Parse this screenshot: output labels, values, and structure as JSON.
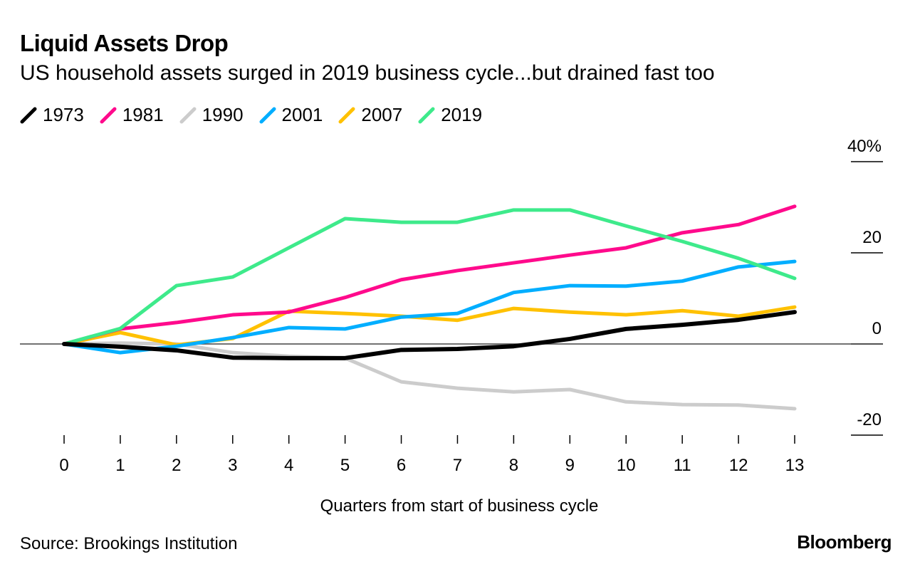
{
  "chart_data": {
    "type": "line",
    "title": "Liquid Assets Drop",
    "subtitle": "US household assets surged in 2019 business cycle...but drained fast too",
    "xlabel": "Quarters from start of business cycle",
    "ylabel": "",
    "x": [
      0,
      1,
      2,
      3,
      4,
      5,
      6,
      7,
      8,
      9,
      10,
      11,
      12,
      13
    ],
    "xlim": [
      0,
      13
    ],
    "ylim": [
      -20,
      40
    ],
    "yticks": [
      -20,
      0,
      20,
      40
    ],
    "ytick_labels": [
      "-20",
      "0",
      "20",
      "40%"
    ],
    "xtick_labels": [
      "0",
      "1",
      "2",
      "3",
      "4",
      "5",
      "6",
      "7",
      "8",
      "9",
      "10",
      "11",
      "12",
      "13"
    ],
    "grid": false,
    "legend_placement": "top-left",
    "series": [
      {
        "name": "1973",
        "color": "#000000",
        "values": [
          0,
          -0.6,
          -1.4,
          -3.0,
          -3.1,
          -3.1,
          -1.3,
          -1.1,
          -0.5,
          1.1,
          3.3,
          4.2,
          5.3,
          7.0
        ]
      },
      {
        "name": "1981",
        "color": "#ff0a8c",
        "values": [
          0,
          3.3,
          4.7,
          6.4,
          7.0,
          10.2,
          14.1,
          16.1,
          17.8,
          19.5,
          21.1,
          24.4,
          26.2,
          30.2
        ]
      },
      {
        "name": "1990",
        "color": "#cccccc",
        "values": [
          0,
          0.2,
          0,
          -1.9,
          -2.7,
          -3.1,
          -8.3,
          -9.7,
          -10.5,
          -10.0,
          -12.7,
          -13.3,
          -13.4,
          -14.2
        ]
      },
      {
        "name": "2001",
        "color": "#00aeff",
        "values": [
          0,
          -1.9,
          -0.5,
          1.4,
          3.6,
          3.3,
          5.9,
          6.7,
          11.3,
          12.8,
          12.7,
          13.8,
          16.9,
          18.1
        ]
      },
      {
        "name": "2007",
        "color": "#ffc100",
        "values": [
          0,
          2.5,
          -0.2,
          1.2,
          7.2,
          6.7,
          6.1,
          5.2,
          7.8,
          7.0,
          6.4,
          7.3,
          6.1,
          8.1
        ]
      },
      {
        "name": "2019",
        "color": "#3eea8b",
        "values": [
          0,
          3.4,
          12.8,
          14.7,
          21.1,
          27.5,
          26.7,
          26.7,
          29.4,
          29.4,
          25.9,
          22.5,
          18.8,
          14.4
        ]
      }
    ]
  },
  "footer": {
    "source": "Source: Brookings Institution",
    "brand": "Bloomberg"
  }
}
